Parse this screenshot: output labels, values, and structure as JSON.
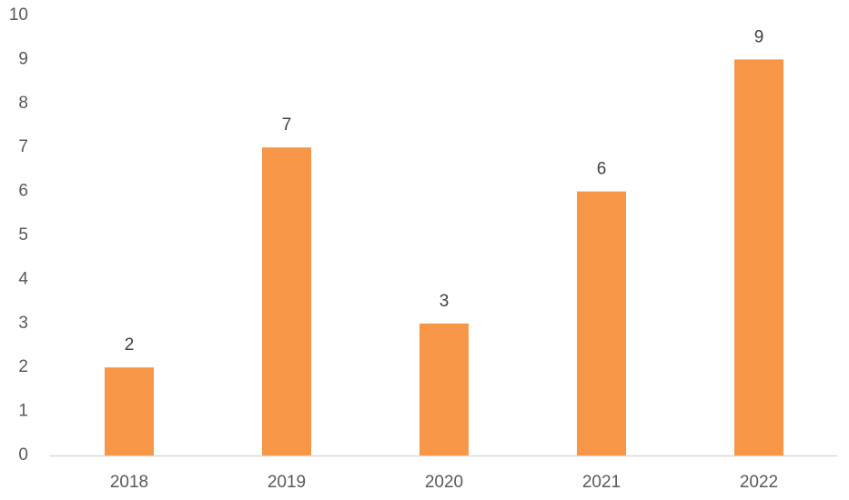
{
  "chart_data": {
    "type": "bar",
    "categories": [
      "2018",
      "2019",
      "2020",
      "2021",
      "2022"
    ],
    "values": [
      2,
      7,
      3,
      6,
      9
    ],
    "color": "#f79646",
    "ylim": [
      0,
      10
    ],
    "yticks": [
      0,
      1,
      2,
      3,
      4,
      5,
      6,
      7,
      8,
      9,
      10
    ],
    "grid": false,
    "data_labels": true
  }
}
